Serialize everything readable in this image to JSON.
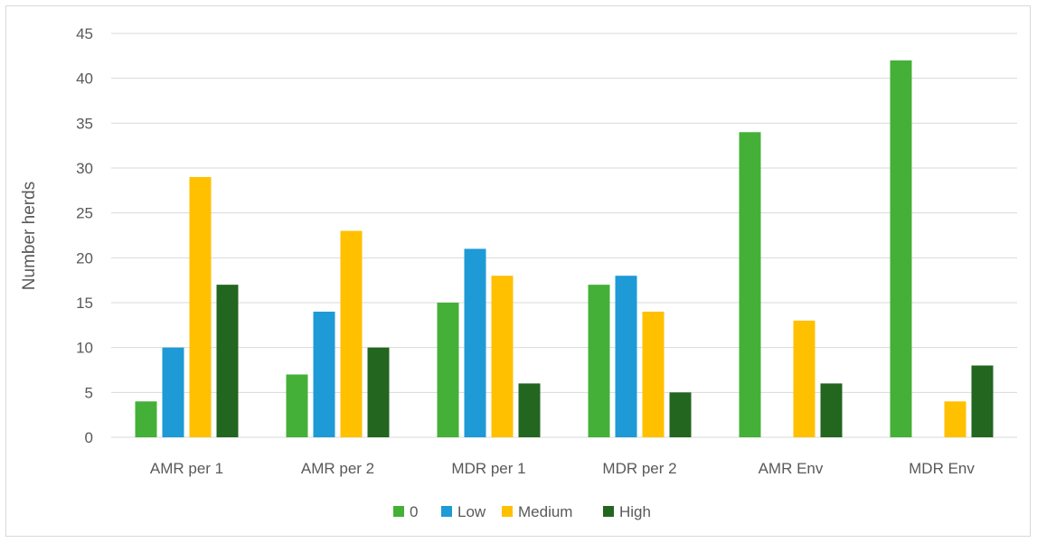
{
  "chart_data": {
    "type": "bar",
    "title": "",
    "xlabel": "",
    "ylabel": "Number herds",
    "ylim": [
      0,
      45
    ],
    "yticks": [
      0,
      5,
      10,
      15,
      20,
      25,
      30,
      35,
      40,
      45
    ],
    "grid": true,
    "legend_position": "bottom",
    "categories": [
      "AMR per 1",
      "AMR per 2",
      "MDR per 1",
      "MDR per 2",
      "AMR Env",
      "MDR Env"
    ],
    "series": [
      {
        "name": "0",
        "color": "#44b038",
        "values": [
          4,
          7,
          15,
          17,
          34,
          42
        ]
      },
      {
        "name": "Low",
        "color": "#1e9ad6",
        "values": [
          10,
          14,
          21,
          18,
          0,
          0
        ]
      },
      {
        "name": "Medium",
        "color": "#ffc000",
        "values": [
          29,
          23,
          18,
          14,
          13,
          4
        ]
      },
      {
        "name": "High",
        "color": "#23661f",
        "values": [
          17,
          10,
          6,
          5,
          6,
          8
        ]
      }
    ]
  }
}
